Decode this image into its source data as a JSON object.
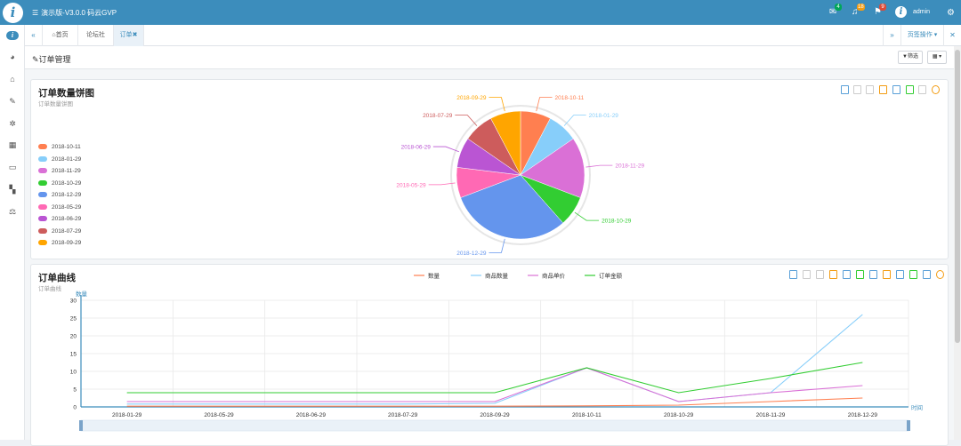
{
  "app": {
    "logo_glyph": "i",
    "menu_glyph": "☰",
    "title": "演示版-V3.0.0 码云GVP",
    "user": "admin",
    "badges": {
      "mail": "4",
      "bell": "18",
      "flag": "9"
    },
    "badge_colors": {
      "mail": "#00a65a",
      "bell": "#f39c12",
      "flag": "#dd4b39"
    },
    "icons": [
      "mail-icon",
      "bell-icon",
      "flag-icon",
      "user-avatar",
      "settings-icon"
    ]
  },
  "sidebar": {
    "items": [
      {
        "name": "dashboard-icon",
        "glyph": "◕"
      },
      {
        "name": "home-icon",
        "glyph": "⌂"
      },
      {
        "name": "edit-icon",
        "glyph": "✎"
      },
      {
        "name": "gear-icon",
        "glyph": "✲"
      },
      {
        "name": "grid-icon",
        "glyph": "▦"
      },
      {
        "name": "monitor-icon",
        "glyph": "▭"
      },
      {
        "name": "map-icon",
        "glyph": "▚"
      },
      {
        "name": "balance-icon",
        "glyph": "⚖"
      }
    ]
  },
  "tabs": {
    "back_glyph": "«",
    "forward_glyph": "»",
    "close_glyph": "✕",
    "items": [
      {
        "label": "首页",
        "glyph": "⌂"
      },
      {
        "label": "论坛社区",
        "glyph": ""
      },
      {
        "label": "订单",
        "glyph": "✖"
      }
    ],
    "page_ops": "页签操作 ▾"
  },
  "page": {
    "title": "订单管理",
    "title_glyph": "✎",
    "filter_label": "筛选",
    "filter_glyph": "▼",
    "grid_glyph": "▦ ▾"
  },
  "pie_panel": {
    "title": "订单数量饼图",
    "subtitle": "订单数量饼图"
  },
  "line_panel": {
    "title": "订单曲线",
    "subtitle": "订单曲线"
  },
  "chart_data": [
    {
      "type": "pie",
      "title": "订单数量饼图",
      "subtitle": "订单数量饼图",
      "legend_position": "left",
      "categories": [
        "2018-10-11",
        "2018-01-29",
        "2018-11-29",
        "2018-10-29",
        "2018-12-29",
        "2018-05-29",
        "2018-06-29",
        "2018-07-29",
        "2018-09-29"
      ],
      "values": [
        1,
        1,
        2,
        1,
        4,
        1,
        1,
        1,
        1
      ],
      "colors": [
        "#ff7f50",
        "#87cefa",
        "#da70d6",
        "#32cd32",
        "#6495ed",
        "#ff69b4",
        "#ba55d3",
        "#cd5c5c",
        "#ffa500"
      ]
    },
    {
      "type": "line",
      "title": "订单曲线",
      "subtitle": "订单曲线",
      "legend_position": "top",
      "xlabel": "时间",
      "ylabel": "数量",
      "ylim": [
        0,
        30
      ],
      "yticks": [
        0,
        5,
        10,
        15,
        20,
        25,
        30
      ],
      "grid": true,
      "categories": [
        "2018-01-29",
        "2018-05-29",
        "2018-06-29",
        "2018-07-29",
        "2018-09-29",
        "2018-10-11",
        "2018-10-29",
        "2018-11-29",
        "2018-12-29"
      ],
      "series": [
        {
          "name": "数量",
          "color": "#ff7f50",
          "values": [
            0.2,
            0.2,
            0.2,
            0.2,
            0.2,
            0.3,
            0.5,
            1.5,
            2.5
          ]
        },
        {
          "name": "商品数量",
          "color": "#87cefa",
          "values": [
            0.8,
            0.8,
            0.8,
            0.8,
            1,
            11,
            1.5,
            4,
            26
          ]
        },
        {
          "name": "商品单价",
          "color": "#da70d6",
          "values": [
            1.5,
            1.5,
            1.5,
            1.5,
            1.5,
            11,
            1.5,
            4,
            6
          ]
        },
        {
          "name": "订单金额",
          "color": "#32cd32",
          "values": [
            4,
            4,
            4,
            4,
            4,
            11,
            4,
            8,
            12.5
          ]
        }
      ]
    }
  ]
}
